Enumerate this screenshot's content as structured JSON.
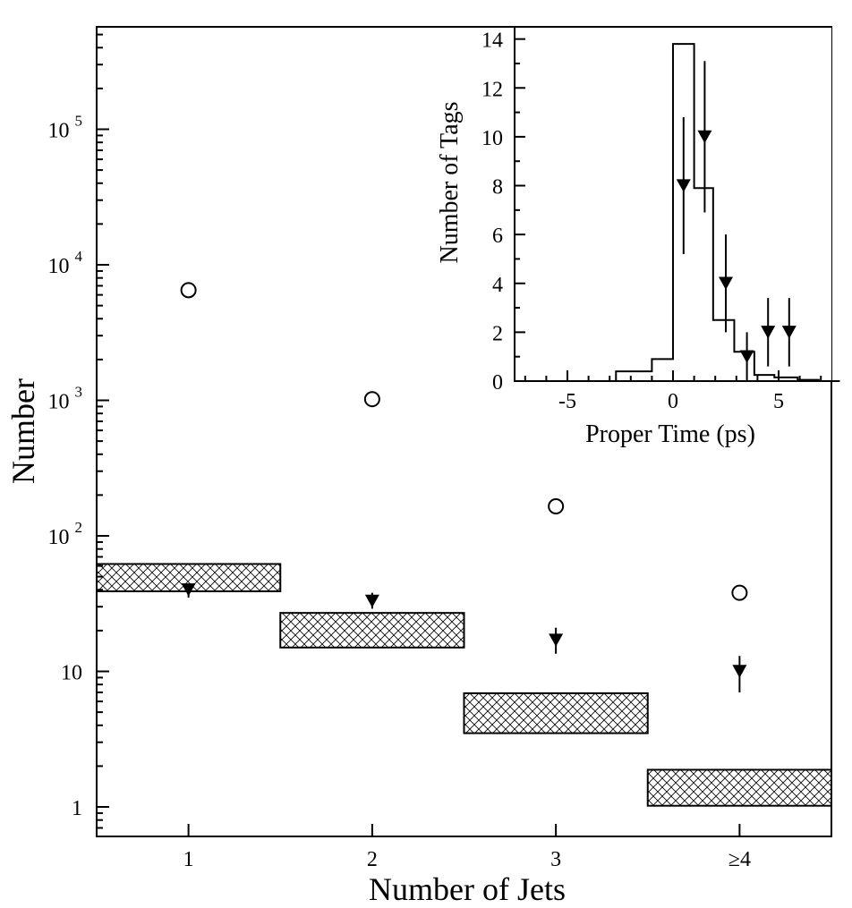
{
  "chart_data": [
    {
      "type": "scatter",
      "xlabel": "Number of Jets",
      "ylabel": "Number",
      "yscale": "log",
      "ylim": [
        0.6,
        600000
      ],
      "xlim": [
        0.5,
        4.5
      ],
      "categories": [
        "1",
        "2",
        "3",
        "≥4"
      ],
      "ytick_labels": [
        {
          "value": 1,
          "mantissa": "1",
          "exp": ""
        },
        {
          "value": 10,
          "mantissa": "10",
          "exp": ""
        },
        {
          "value": 100,
          "mantissa": "10",
          "exp": "2"
        },
        {
          "value": 1000,
          "mantissa": "10",
          "exp": "3"
        },
        {
          "value": 10000,
          "mantissa": "10",
          "exp": "4"
        },
        {
          "value": 100000,
          "mantissa": "10",
          "exp": "5"
        }
      ],
      "series": [
        {
          "marker": "open-circle",
          "x": [
            1,
            2,
            3,
            4
          ],
          "y": [
            6500,
            1020,
            165,
            38
          ]
        },
        {
          "marker": "filled-triangle-down",
          "x": [
            1,
            2,
            3,
            4
          ],
          "y": [
            40,
            33,
            17,
            10
          ],
          "err_low": [
            35,
            29,
            13.5,
            7
          ],
          "err_high": [
            44,
            38,
            21,
            13
          ]
        },
        {
          "marker": "hatched-band",
          "x_low": [
            0.5,
            1.5,
            2.5,
            3.5
          ],
          "x_high": [
            1.5,
            2.5,
            3.5,
            4.5
          ],
          "y_low": [
            39,
            15,
            3.5,
            1.02
          ],
          "y_high": [
            62,
            27,
            6.9,
            1.88
          ]
        }
      ],
      "grid": false,
      "colors": {
        "ink": "#000000",
        "background": "#ffffff"
      }
    },
    {
      "type": "histogram",
      "inset": true,
      "xlabel": "Proper Time (ps)",
      "ylabel": "Number of Tags",
      "xlim": [
        -7.5,
        7.5
      ],
      "ylim": [
        0,
        14.5
      ],
      "xticks": [
        -5,
        0,
        5
      ],
      "yticks": [
        0,
        2,
        4,
        6,
        8,
        10,
        12,
        14
      ],
      "histogram": {
        "bin_edges": [
          -2.7,
          -1.0,
          0.0,
          1.0,
          1.9,
          2.9,
          3.85,
          4.8,
          5.9,
          6.9,
          7.9
        ],
        "counts": [
          0.4,
          0.9,
          13.8,
          7.9,
          2.5,
          1.2,
          0.25,
          0.15,
          0.05,
          0.0
        ]
      },
      "points": {
        "marker": "filled-triangle-down",
        "x": [
          0.5,
          1.5,
          2.5,
          3.5,
          4.5,
          5.5
        ],
        "y": [
          8,
          10,
          4,
          1,
          2,
          2
        ],
        "err_low": [
          5.2,
          6.9,
          2.0,
          0,
          0.6,
          0.6
        ],
        "err_high": [
          10.8,
          13.1,
          6.0,
          2.0,
          3.4,
          3.4
        ]
      }
    }
  ]
}
